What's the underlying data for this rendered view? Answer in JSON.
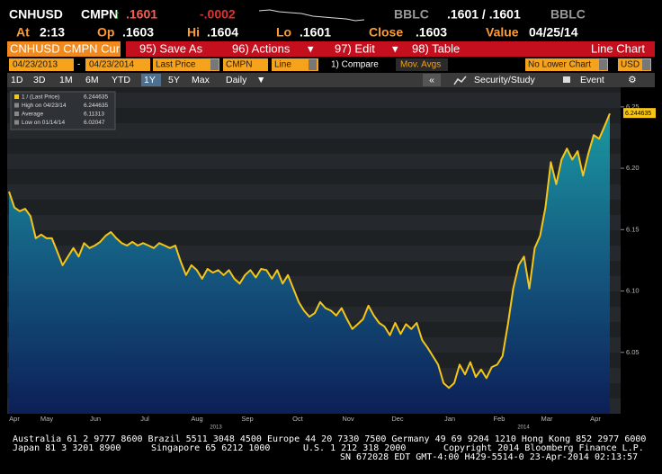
{
  "header": {
    "ticker": "CNHUSD",
    "source": "CMPN",
    "arrow": "↑",
    "last": ".1601",
    "change": "-.0002",
    "bid_source": "BBLC",
    "bid_ask": ".1601 / .1601",
    "ask_source": "BBLC",
    "at_label": "At",
    "at": "2:13",
    "open_label": "Op",
    "open": ".1603",
    "high_label": "Hi",
    "high": ".1604",
    "low_label": "Lo",
    "low": ".1601",
    "close_label": "Close",
    "close": ".1603",
    "value_label": "Value",
    "value_date": "04/25/14"
  },
  "menu": {
    "security": "CNHUSD CMPN Cur",
    "save": "95) Save As",
    "actions": "96) Actions",
    "edit": "97) Edit",
    "table": "98) Table",
    "view": "Line Chart"
  },
  "fields": {
    "start": "04/23/2013",
    "dash": "-",
    "end": "04/23/2014",
    "field": "Last Price",
    "source": "CMPN",
    "style": "Line",
    "compare": "1) Compare",
    "mavg": "Mov. Avgs",
    "lower": "No Lower Chart",
    "currency": "USD"
  },
  "toolbar": {
    "ranges": [
      "1D",
      "3D",
      "1M",
      "6M",
      "YTD",
      "1Y",
      "5Y",
      "Max"
    ],
    "selected": "1Y",
    "period": "Daily",
    "collapse": "«",
    "study": "Security/Study",
    "event": "Event"
  },
  "chart_data": {
    "type": "line",
    "series": [
      {
        "name": "1 / (Last Price)",
        "color": "#f5c518",
        "values": [
          6.181,
          6.168,
          6.165,
          6.167,
          6.161,
          6.143,
          6.146,
          6.143,
          6.143,
          6.132,
          6.121,
          6.128,
          6.135,
          6.128,
          6.139,
          6.135,
          6.137,
          6.14,
          6.145,
          6.148,
          6.143,
          6.139,
          6.137,
          6.14,
          6.137,
          6.139,
          6.137,
          6.135,
          6.139,
          6.137,
          6.135,
          6.137,
          6.124,
          6.113,
          6.121,
          6.117,
          6.11,
          6.118,
          6.115,
          6.117,
          6.113,
          6.117,
          6.11,
          6.106,
          6.113,
          6.117,
          6.111,
          6.118,
          6.117,
          6.11,
          6.117,
          6.106,
          6.113,
          6.102,
          6.091,
          6.084,
          6.079,
          6.082,
          6.091,
          6.086,
          6.084,
          6.08,
          6.086,
          6.077,
          6.069,
          6.073,
          6.077,
          6.088,
          6.08,
          6.074,
          6.071,
          6.064,
          6.074,
          6.065,
          6.073,
          6.069,
          6.074,
          6.06,
          6.054,
          6.047,
          6.04,
          6.025,
          6.021,
          6.025,
          6.04,
          6.032,
          6.042,
          6.03,
          6.036,
          6.029,
          6.038,
          6.04,
          6.047,
          6.073,
          6.102,
          6.121,
          6.128,
          6.102,
          6.135,
          6.145,
          6.168,
          6.205,
          6.187,
          6.207,
          6.216,
          6.207,
          6.214,
          6.194,
          6.212,
          6.227,
          6.224,
          6.234,
          6.244635
        ]
      }
    ],
    "legend": [
      {
        "label": "1 / (Last Price)",
        "value": 6.244635
      },
      {
        "label": "High on 04/23/14",
        "value": 6.244635
      },
      {
        "label": "Average",
        "value": 6.11313
      },
      {
        "label": "Low on 01/14/14",
        "value": 6.02047
      }
    ],
    "ylim": [
      6.0,
      6.266
    ],
    "yticks": [
      6.05,
      {
        "value": 6.1,
        "label": "6.10"
      },
      6.15,
      {
        "value": 6.2,
        "label": "6.20"
      },
      6.25
    ],
    "month_labels": [
      "Apr",
      "May",
      "Jun",
      "Jul",
      "Aug",
      "Sep",
      "Oct",
      "Nov",
      "Dec",
      "Jan",
      "Feb",
      "Mar",
      "Apr"
    ],
    "year_labels": [
      "2013",
      "2014"
    ]
  },
  "footer": {
    "line1": "Australia 61 2 9777 8600 Brazil 5511 3048 4500 Europe 44 20 7330 7500 Germany 49 69 9204 1210 Hong Kong 852 2977 6000",
    "japan": "Japan 81 3 3201 8900",
    "singapore": "Singapore 65 6212 1000",
    "us": "U.S. 1 212 318 2000",
    "copyright": "Copyright 2014 Bloomberg Finance L.P.",
    "line3": "SN 672028 EDT  GMT-4:00 H429-5514-0 23-Apr-2014 02:13:57"
  }
}
